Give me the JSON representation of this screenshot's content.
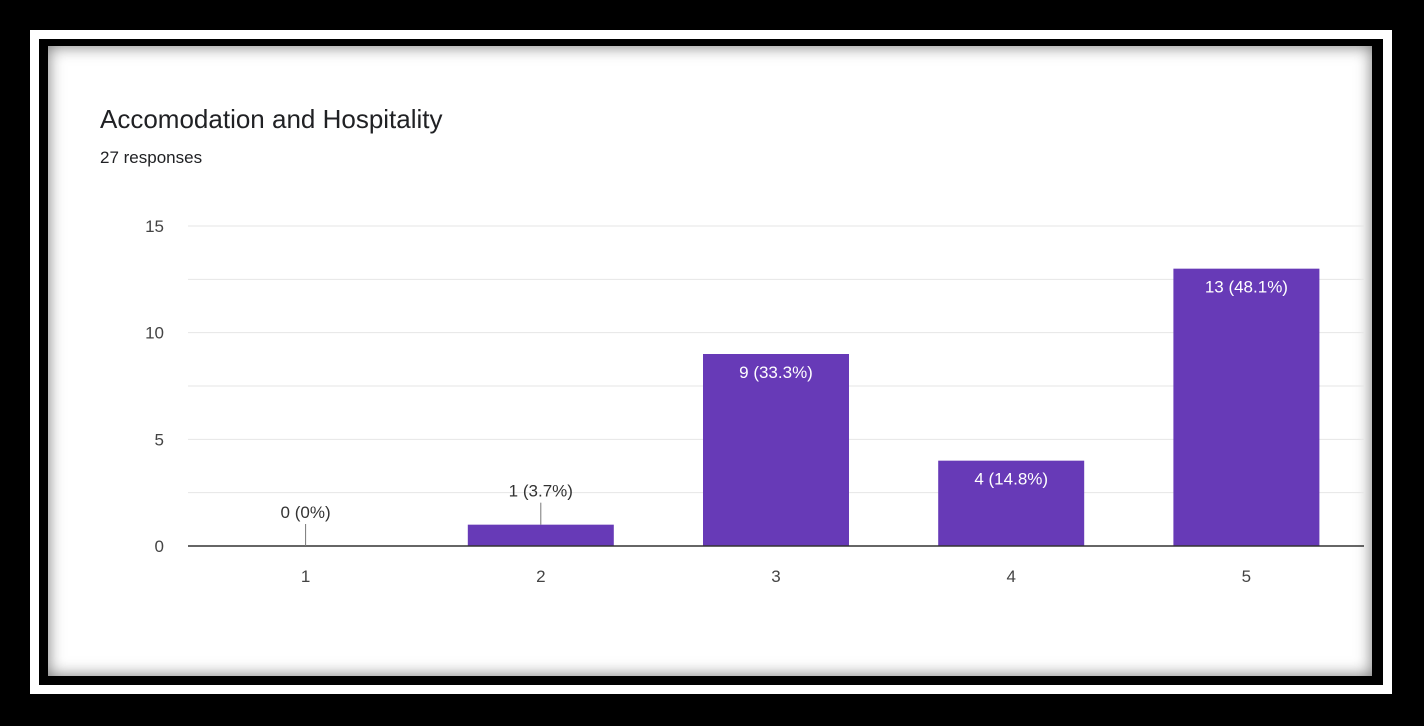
{
  "colors": {
    "bar": "#673ab7",
    "grid": "#e6e6e6",
    "axis": "#333333",
    "text": "#202124"
  },
  "chart_data": {
    "type": "bar",
    "title": "Accomodation and Hospitality",
    "subtitle": "27 responses",
    "xlabel": "",
    "ylabel": "",
    "categories": [
      "1",
      "2",
      "3",
      "4",
      "5"
    ],
    "values": [
      0,
      1,
      9,
      4,
      13
    ],
    "data_labels": [
      "0 (0%)",
      "1 (3.7%)",
      "9 (33.3%)",
      "4 (14.8%)",
      "13 (48.1%)"
    ],
    "ylim": [
      0,
      15
    ],
    "yticks": [
      0,
      5,
      10,
      15
    ],
    "grid": true,
    "legend": "none"
  }
}
